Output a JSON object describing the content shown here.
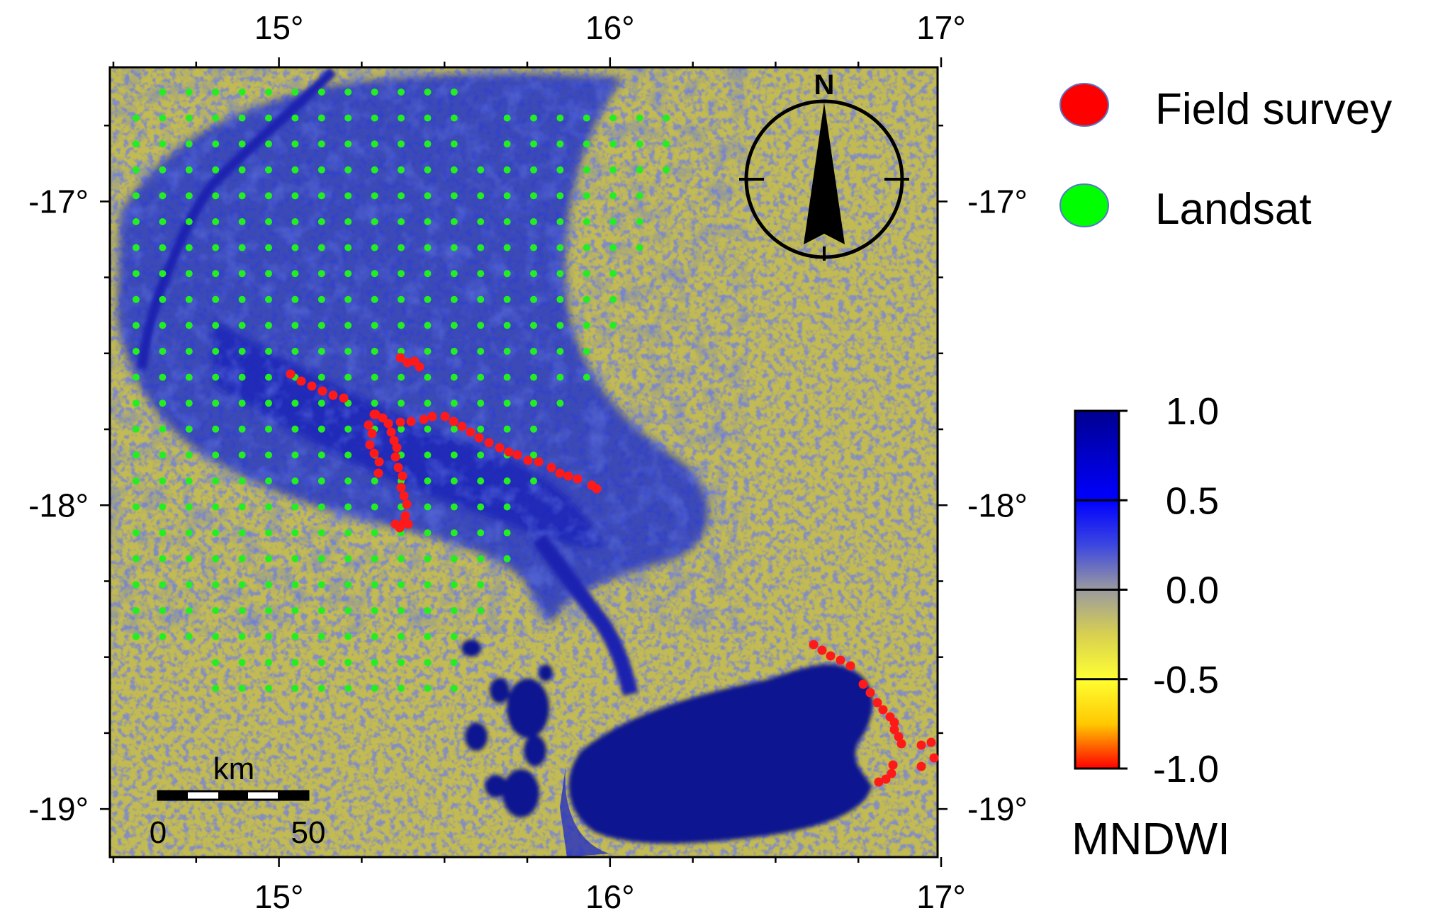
{
  "map": {
    "x_ticks": [
      "15°",
      "16°",
      "17°"
    ],
    "y_ticks": [
      "-17°",
      "-18°",
      "-19°"
    ],
    "lon_values": [
      15,
      16,
      17
    ],
    "lat_values": [
      -17,
      -18,
      -19
    ],
    "lon_range": [
      14.5,
      17.0
    ],
    "lat_range": [
      -19.1,
      -16.5
    ]
  },
  "legend": {
    "items": [
      {
        "label": "Field survey",
        "color": "#ff0000"
      },
      {
        "label": "Landsat",
        "color": "#00ff00"
      }
    ]
  },
  "colorbar": {
    "title": "MNDWI",
    "ticks": [
      "1.0",
      "0.5",
      "0.0",
      "-0.5",
      "-1.0"
    ],
    "range": [
      -1.0,
      1.0
    ],
    "colors": [
      "#ff0000",
      "#ffc800",
      "#ffff33",
      "#d8d050",
      "#9a9aa0",
      "#3c46e0",
      "#0000ff",
      "#0000c8",
      "#000090"
    ]
  },
  "north_arrow": {
    "label": "N"
  },
  "scale_bar": {
    "unit": "km",
    "labels": [
      "0",
      "50"
    ]
  },
  "colors": {
    "land": "#c8c23a",
    "water": "#1f2fd0",
    "deep_water": "#0c1585",
    "landsat_point": "#22ee22",
    "field_point": "#ff1a1a"
  }
}
